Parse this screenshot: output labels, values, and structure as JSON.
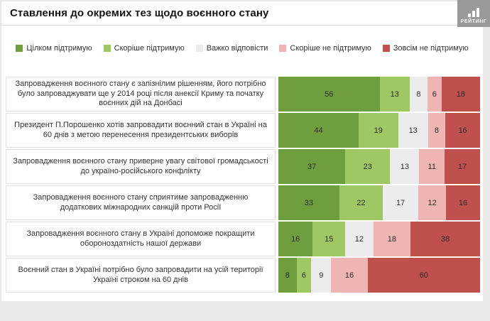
{
  "header": {
    "title": "Ставлення до окремих тез щодо воєнного стану",
    "logo_text": "РЕЙТИНГ"
  },
  "chart_data": {
    "type": "bar",
    "stacked": true,
    "orientation": "horizontal",
    "unit": "percent",
    "title": "Ставлення до окремих тез щодо воєнного стану",
    "legend": [
      "Цілком підтримую",
      "Скоріше підтримую",
      "Важко відповісти",
      "Скоріше не підтримую",
      "Зовсім не підтримую"
    ],
    "colors": [
      "#6f9e3e",
      "#9fc763",
      "#ececec",
      "#efb5b4",
      "#c0504d"
    ],
    "rows": [
      {
        "label": "Запровадження воєнного стану є запізнілим рішенням, його потрібно було запроваджувати ще у 2014 році після анексії Криму та початку воєнних дій на Донбасі",
        "values": [
          56,
          13,
          8,
          6,
          18
        ]
      },
      {
        "label": "Президент П.Порошенко хотів запровадити воєнний стан в Україні на 60 днів з метою перенесення президентських виборів",
        "values": [
          44,
          19,
          13,
          8,
          16
        ]
      },
      {
        "label": "Запровадження воєнного стану приверне увагу світової громадськості до україно-російського конфлікту",
        "values": [
          37,
          23,
          13,
          11,
          17
        ]
      },
      {
        "label": "Запровадження воєнного стану сприятиме запровадженню додаткових міжнародних санкцій проти Росії",
        "values": [
          33,
          22,
          17,
          12,
          16
        ]
      },
      {
        "label": "Запровадження воєнного стану в Україні допоможе покращити обороноздатність нашої держави",
        "values": [
          16,
          15,
          12,
          18,
          38
        ]
      },
      {
        "label": "Воєнний стан в Україні потрібно було запровадити на усій території Україні строком на 60 днів",
        "values": [
          8,
          6,
          9,
          16,
          60
        ]
      }
    ]
  }
}
